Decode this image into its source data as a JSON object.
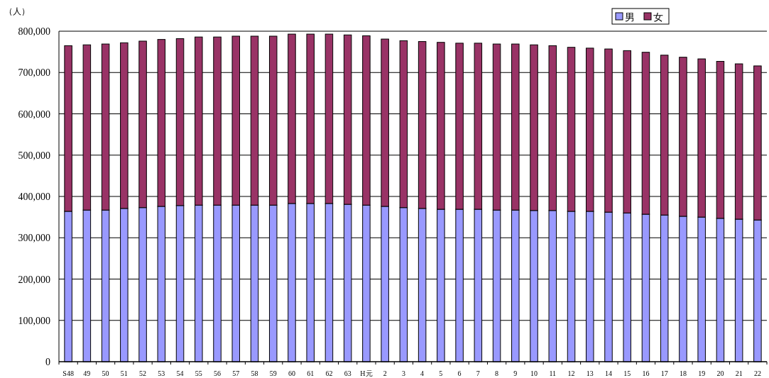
{
  "chart_data": {
    "type": "bar",
    "stacked": true,
    "ylabel": "（人）",
    "categories": [
      "S48",
      "49",
      "50",
      "51",
      "52",
      "53",
      "54",
      "55",
      "56",
      "57",
      "58",
      "59",
      "60",
      "61",
      "62",
      "63",
      "H元",
      "2",
      "3",
      "4",
      "5",
      "6",
      "7",
      "8",
      "9",
      "10",
      "11",
      "12",
      "13",
      "14",
      "15",
      "16",
      "17",
      "18",
      "19",
      "20",
      "21",
      "22"
    ],
    "series": [
      {
        "name": "男",
        "color": "#9999ff",
        "values": [
          364000,
          367000,
          367000,
          371000,
          373000,
          376000,
          378000,
          379000,
          379000,
          379000,
          379000,
          379000,
          383000,
          383000,
          383000,
          381000,
          379000,
          376000,
          373000,
          371000,
          369000,
          369000,
          369000,
          367000,
          367000,
          366000,
          366000,
          364000,
          364000,
          362000,
          360000,
          357000,
          355000,
          352000,
          350000,
          347000,
          345000,
          343000
        ]
      },
      {
        "name": "女",
        "color": "#993366",
        "values": [
          401000,
          400000,
          402000,
          401000,
          403000,
          404000,
          404000,
          407000,
          407000,
          409000,
          409000,
          409000,
          410000,
          410000,
          410000,
          410000,
          410000,
          405000,
          404000,
          404000,
          404000,
          402000,
          402000,
          402000,
          402000,
          401000,
          399000,
          397000,
          395000,
          395000,
          393000,
          392000,
          387000,
          385000,
          383000,
          380000,
          376000,
          373000
        ]
      }
    ],
    "ylim": [
      0,
      800000
    ],
    "yticks": [
      {
        "value": 0,
        "label": "0"
      },
      {
        "value": 100000,
        "label": "100,000"
      },
      {
        "value": 200000,
        "label": "200,000"
      },
      {
        "value": 300000,
        "label": "300,000"
      },
      {
        "value": 400000,
        "label": "400,000"
      },
      {
        "value": 500000,
        "label": "500,000"
      },
      {
        "value": 600000,
        "label": "600,000"
      },
      {
        "value": 700000,
        "label": "700,000"
      },
      {
        "value": 800000,
        "label": "800,000"
      }
    ],
    "grid": "y",
    "legend": "top right"
  }
}
